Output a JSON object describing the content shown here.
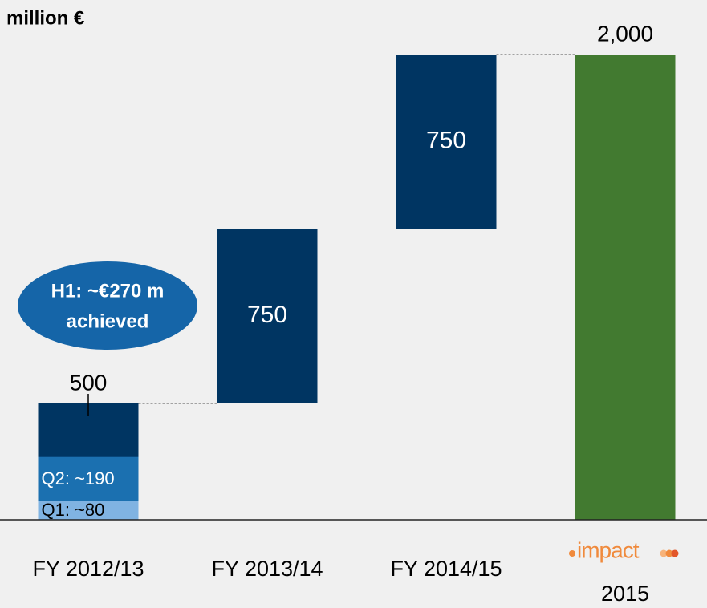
{
  "chart_data": {
    "type": "waterfall",
    "unit_label": "million €",
    "categories": [
      "FY 2012/13",
      "FY 2013/14",
      "FY 2014/15",
      "2015"
    ],
    "values": [
      500,
      750,
      750,
      2000
    ],
    "value_labels": [
      "500",
      "750",
      "750",
      "2,000"
    ],
    "is_total": [
      false,
      false,
      false,
      true
    ],
    "color": "#003562",
    "total_color": "#427a30",
    "ylim": [
      0,
      2000
    ],
    "breakdown": [
      {
        "label": "Q1: ~80",
        "value": 80,
        "color": "#80b3e2"
      },
      {
        "label": "Q2: ~190",
        "value": 190,
        "color": "#1b70b0"
      }
    ],
    "annotation": [
      "H1: ~€270 m",
      "achieved"
    ],
    "logo_text": "impact"
  }
}
